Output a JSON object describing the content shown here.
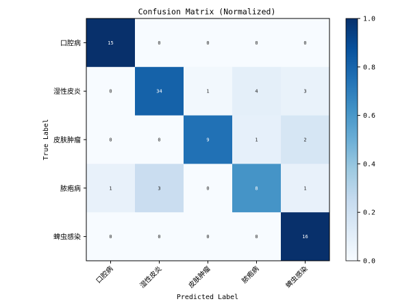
{
  "chart_data": {
    "type": "heatmap",
    "title": "Confusion Matrix (Normalized)",
    "xlabel": "Predicted Label",
    "ylabel": "True Label",
    "classes": [
      "口腔病",
      "湿性皮炎",
      "皮肤肿瘤",
      "脓疱病",
      "蜱虫感染"
    ],
    "counts": [
      [
        15,
        0,
        0,
        0,
        0
      ],
      [
        0,
        34,
        1,
        4,
        3
      ],
      [
        0,
        0,
        9,
        1,
        2
      ],
      [
        1,
        3,
        0,
        8,
        1
      ],
      [
        0,
        0,
        0,
        0,
        16
      ]
    ],
    "normalization": "row",
    "colormap": "Blues",
    "colorbar": {
      "range": [
        0.0,
        1.0
      ],
      "ticks": [
        "0.0",
        "0.2",
        "0.4",
        "0.6",
        "0.8",
        "1.0"
      ]
    }
  }
}
